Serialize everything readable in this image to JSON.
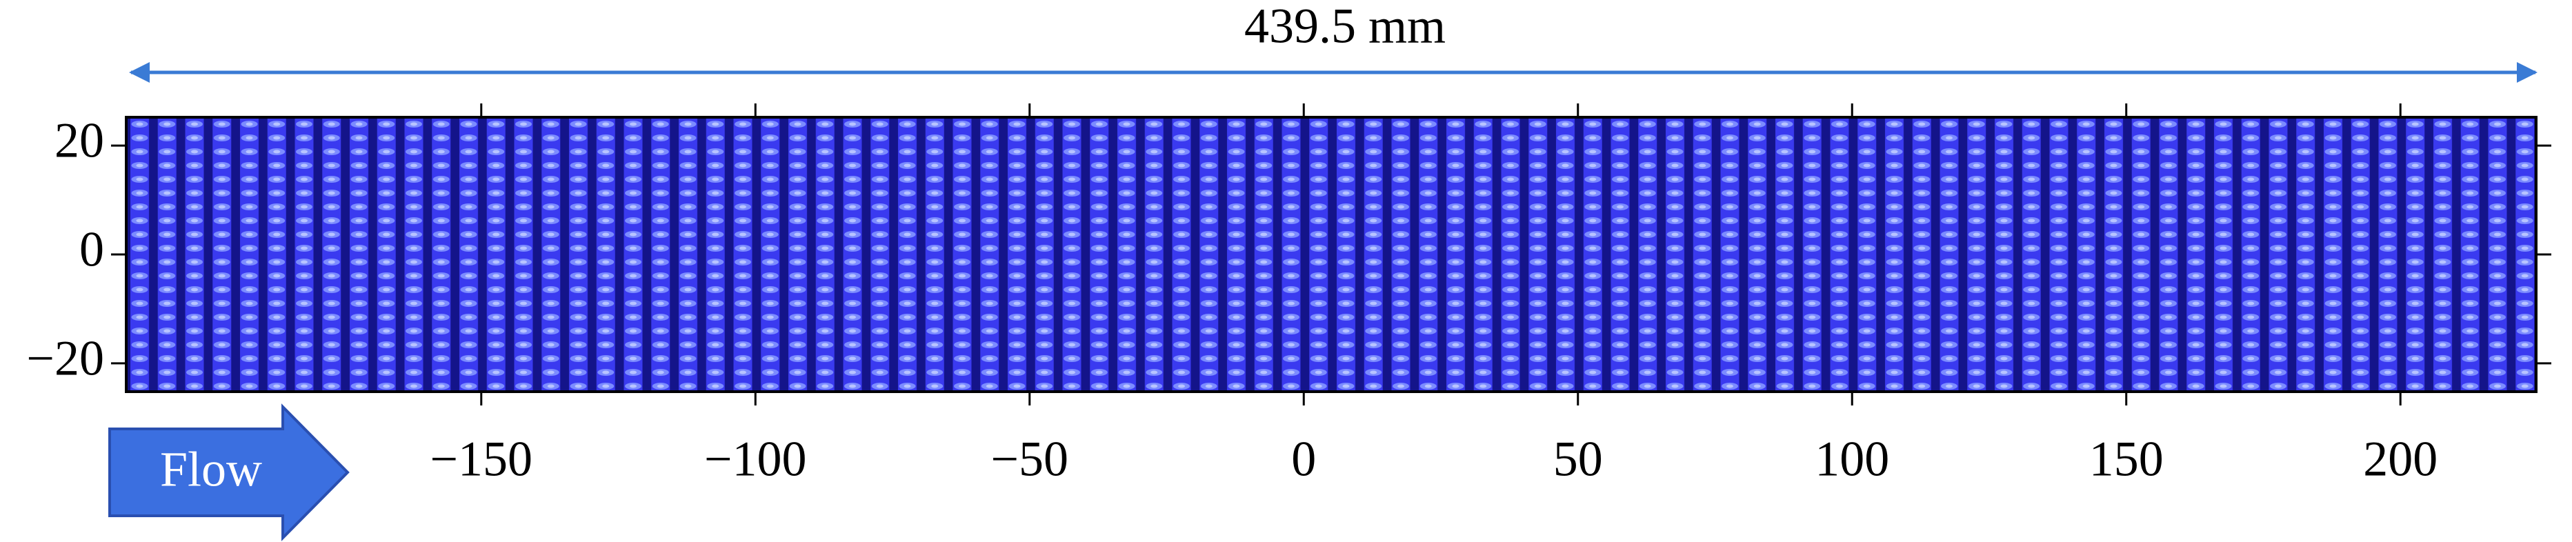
{
  "dimension_label": "439.5 mm",
  "flow_label": "Flow",
  "axes": {
    "xlim": [
      -214.75,
      224.75
    ],
    "ylim": [
      -25.2,
      25.2
    ],
    "xticks": [
      {
        "value": -150,
        "label": "−150"
      },
      {
        "value": -100,
        "label": "−100"
      },
      {
        "value": -50,
        "label": "−50"
      },
      0,
      50,
      100,
      150,
      200
    ],
    "yticks": [
      {
        "value": -20,
        "label": "−20"
      },
      0,
      20
    ]
  }
}
